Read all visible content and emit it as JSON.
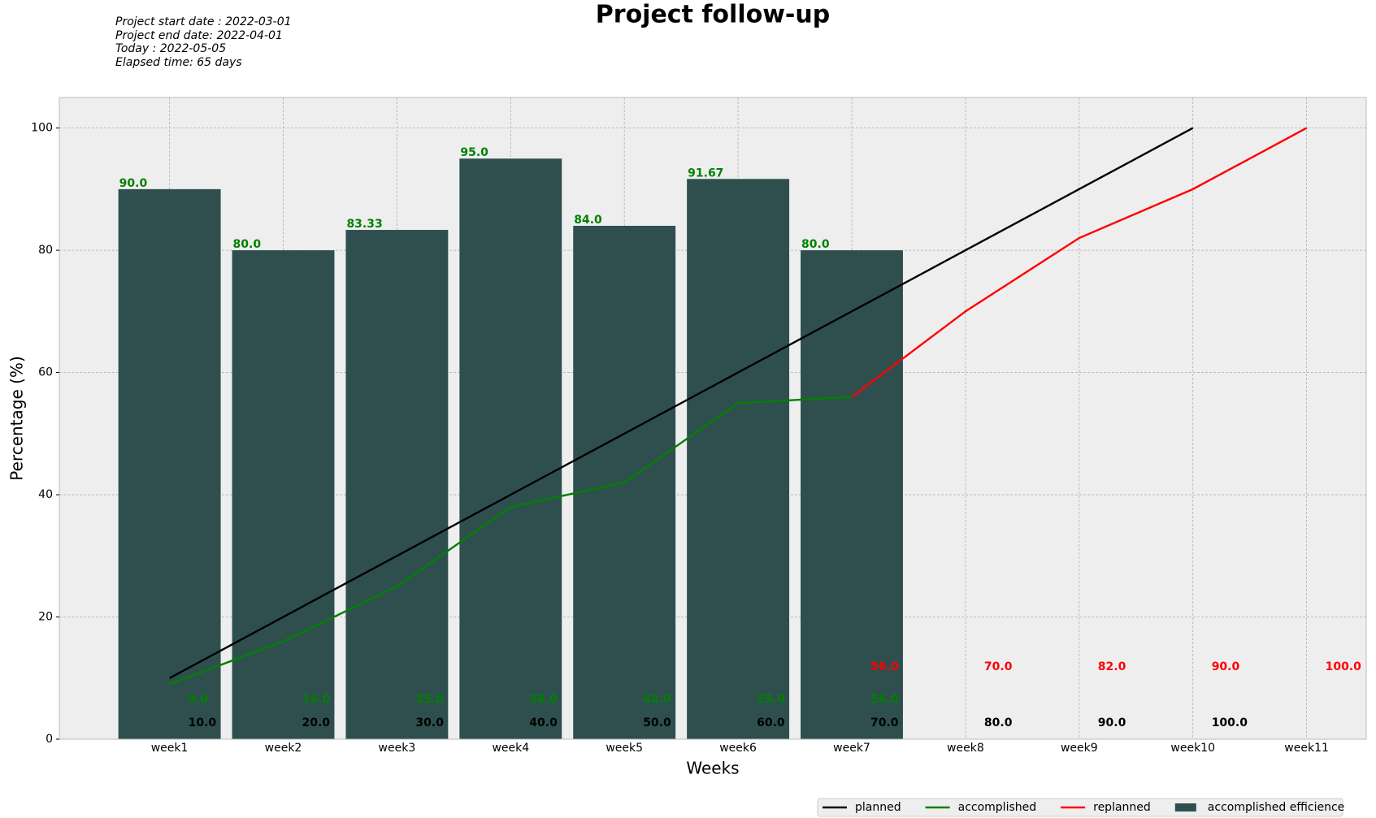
{
  "chart_data": {
    "type": "combo",
    "title": "Project follow-up",
    "annotations": [
      "Project start date : 2022-03-01",
      "Project end date: 2022-04-01",
      "Today : 2022-05-05",
      "Elapsed time: 65 days"
    ],
    "xlabel": "Weeks",
    "ylabel": "Percentage (%)",
    "categories": [
      "week1",
      "week2",
      "week3",
      "week4",
      "week5",
      "week6",
      "week7",
      "week8",
      "week9",
      "week10",
      "week11"
    ],
    "ylim": [
      0,
      105
    ],
    "yticks": [
      0,
      20,
      40,
      60,
      80,
      100
    ],
    "grid": true,
    "legend": "lower right",
    "series": [
      {
        "name": "planned",
        "type": "line",
        "color": "#000000",
        "values": [
          10,
          20,
          30,
          40,
          50,
          60,
          70,
          80,
          90,
          100,
          null
        ],
        "value_labels": [
          "10.0",
          "20.0",
          "30.0",
          "40.0",
          "50.0",
          "60.0",
          "70.0",
          "80.0",
          "90.0",
          "100.0",
          null
        ]
      },
      {
        "name": "accomplished",
        "type": "line",
        "color": "#008000",
        "values": [
          9,
          16,
          25,
          38,
          42,
          55,
          56,
          null,
          null,
          null,
          null
        ],
        "value_labels": [
          "9.0",
          "16.0",
          "25.0",
          "38.0",
          "42.0",
          "55.0",
          "56.0",
          null,
          null,
          null,
          null
        ]
      },
      {
        "name": "replanned",
        "type": "line",
        "color": "#ff0000",
        "values": [
          null,
          null,
          null,
          null,
          null,
          null,
          56,
          70,
          82,
          90,
          100
        ],
        "value_labels": [
          null,
          null,
          null,
          null,
          null,
          null,
          "56.0",
          "70.0",
          "82.0",
          "90.0",
          "100.0"
        ]
      },
      {
        "name": "accomplished efficience",
        "type": "bar",
        "color": "#2f4f4f",
        "label_color": "#008000",
        "values": [
          90,
          80,
          83.33,
          95,
          84,
          91.67,
          80,
          null,
          null,
          null,
          null
        ],
        "value_labels": [
          "90.0",
          "80.0",
          "83.33",
          "95.0",
          "84.0",
          "91.67",
          "80.0",
          null,
          null,
          null,
          null
        ]
      }
    ]
  }
}
